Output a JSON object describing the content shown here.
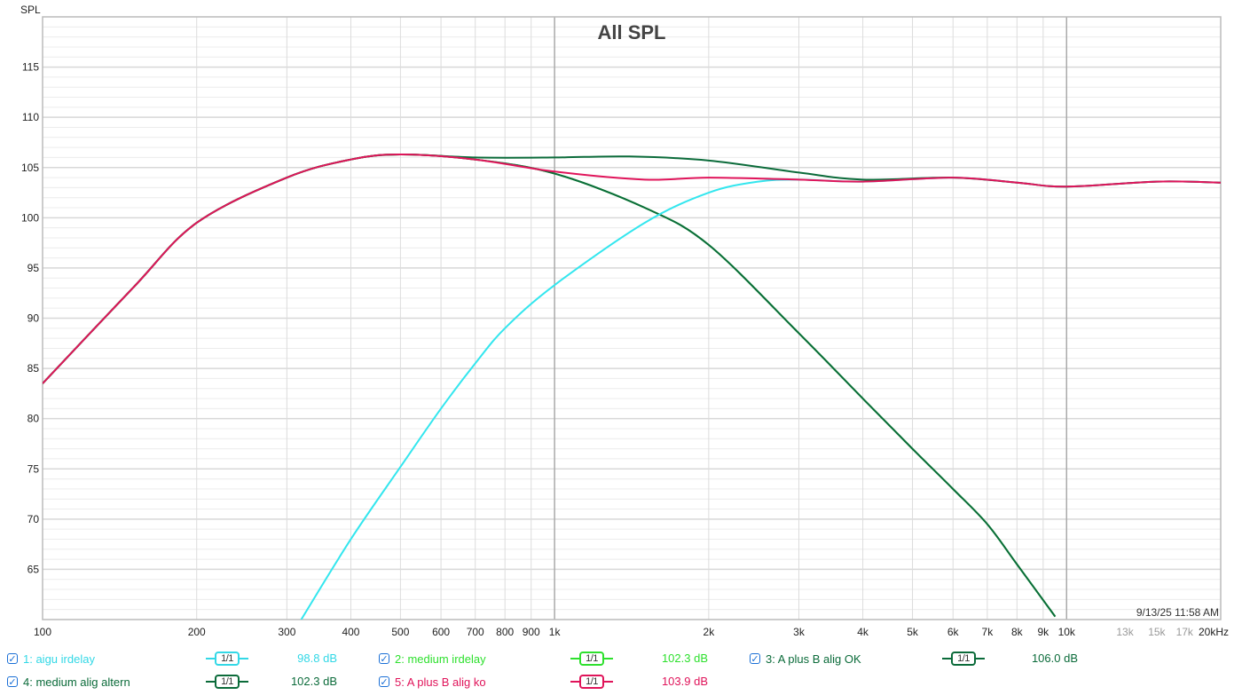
{
  "chart_data": {
    "type": "line",
    "title": "All SPL",
    "ylabel": "SPL",
    "xscale": "log",
    "xlim": [
      100,
      20000
    ],
    "ylim": [
      60,
      120
    ],
    "grid": true,
    "yticks": [
      65,
      70,
      75,
      80,
      85,
      90,
      95,
      100,
      105,
      110,
      115
    ],
    "xticks": [
      {
        "v": 100,
        "label": "100"
      },
      {
        "v": 200,
        "label": "200"
      },
      {
        "v": 300,
        "label": "300"
      },
      {
        "v": 400,
        "label": "400"
      },
      {
        "v": 500,
        "label": "500"
      },
      {
        "v": 600,
        "label": "600"
      },
      {
        "v": 700,
        "label": "700"
      },
      {
        "v": 800,
        "label": "800"
      },
      {
        "v": 900,
        "label": "900"
      },
      {
        "v": 1000,
        "label": "1k"
      },
      {
        "v": 2000,
        "label": "2k"
      },
      {
        "v": 3000,
        "label": "3k"
      },
      {
        "v": 4000,
        "label": "4k"
      },
      {
        "v": 5000,
        "label": "5k"
      },
      {
        "v": 6000,
        "label": "6k"
      },
      {
        "v": 7000,
        "label": "7k"
      },
      {
        "v": 8000,
        "label": "8k"
      },
      {
        "v": 9000,
        "label": "9k"
      },
      {
        "v": 10000,
        "label": "10k"
      },
      {
        "v": 13000,
        "label": "13k",
        "minor": true
      },
      {
        "v": 15000,
        "label": "15k",
        "minor": true
      },
      {
        "v": 17000,
        "label": "17k",
        "minor": true
      },
      {
        "v": 20000,
        "label": "20kHz"
      }
    ],
    "timestamp": "9/13/25 11:58 AM",
    "series": [
      {
        "name": "2: medium irdelay",
        "color": "#2ee02e",
        "x": [
          100,
          150,
          200,
          300,
          400,
          500,
          700,
          1000,
          1500,
          2000,
          3000,
          4000,
          5000,
          6000,
          7000,
          8000,
          9500
        ],
        "y": [
          83.5,
          93,
          99.5,
          104,
          105.8,
          106.3,
          105.8,
          104.4,
          101,
          97.3,
          88.5,
          82,
          77,
          73,
          69.5,
          65.5,
          60.3
        ]
      },
      {
        "name": "4: medium alig altern",
        "color": "#0b6b3a",
        "x": [
          100,
          150,
          200,
          300,
          400,
          500,
          700,
          1000,
          1500,
          2000,
          3000,
          4000,
          5000,
          6000,
          7000,
          8000,
          9500
        ],
        "y": [
          83.5,
          93,
          99.5,
          104,
          105.8,
          106.3,
          105.8,
          104.4,
          101,
          97.3,
          88.5,
          82,
          77,
          73,
          69.5,
          65.5,
          60.3
        ]
      },
      {
        "name": "1: aigu irdelay",
        "color": "#33e6ee",
        "x": [
          320,
          400,
          500,
          600,
          700,
          800,
          1000,
          1500,
          2000,
          2500,
          3000,
          4000,
          6000,
          8000,
          10000,
          15000,
          20000
        ],
        "y": [
          60,
          68,
          75.2,
          81,
          85.5,
          89,
          93.3,
          99.5,
          102.5,
          103.6,
          103.8,
          103.6,
          104,
          103.5,
          103.1,
          103.6,
          103.5
        ]
      },
      {
        "name": "3: A plus B alig OK",
        "color": "#0b6b3a",
        "x": [
          100,
          150,
          200,
          300,
          400,
          500,
          700,
          1000,
          1400,
          2000,
          3000,
          4000,
          6000,
          8000,
          10000,
          15000,
          20000
        ],
        "y": [
          83.5,
          93,
          99.5,
          104,
          105.8,
          106.3,
          106,
          106,
          106.1,
          105.7,
          104.5,
          103.8,
          104,
          103.5,
          103.1,
          103.6,
          103.5
        ]
      },
      {
        "name": "5: A plus B alig ko",
        "color": "#e0145a",
        "x": [
          100,
          150,
          200,
          300,
          400,
          500,
          700,
          1000,
          1500,
          2000,
          3000,
          4000,
          6000,
          8000,
          10000,
          15000,
          20000
        ],
        "y": [
          83.5,
          93,
          99.5,
          104,
          105.8,
          106.3,
          105.8,
          104.6,
          103.8,
          104,
          103.8,
          103.6,
          104,
          103.5,
          103.1,
          103.6,
          103.5
        ]
      }
    ]
  },
  "legend": [
    {
      "label": "1: aigu irdelay",
      "color": "#33d8e6",
      "value": "98.8 dB",
      "filter": "1/1",
      "checked": true
    },
    {
      "label": "2: medium irdelay",
      "color": "#2ee02e",
      "value": "102.3 dB",
      "filter": "1/1",
      "checked": true
    },
    {
      "label": "3: A plus B alig OK",
      "color": "#0b6b3a",
      "value": "106.0 dB",
      "filter": "1/1",
      "checked": true
    },
    {
      "label": "4: medium alig altern",
      "color": "#0b6b3a",
      "value": "102.3 dB",
      "filter": "1/1",
      "checked": true
    },
    {
      "label": "5: A plus B alig ko",
      "color": "#e0145a",
      "value": "103.9 dB",
      "filter": "1/1",
      "checked": true
    }
  ]
}
